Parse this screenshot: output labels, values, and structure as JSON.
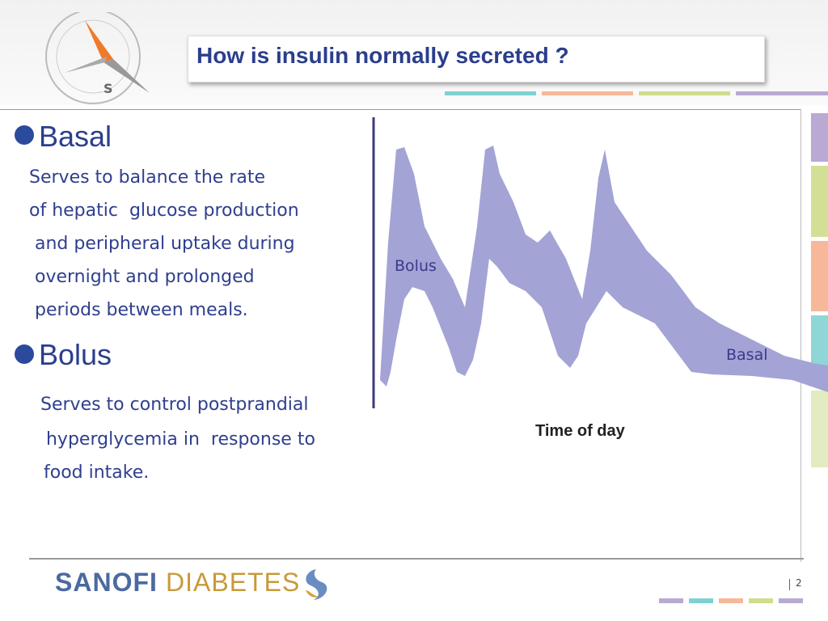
{
  "header": {
    "title": "How is insulin normally secreted ?"
  },
  "bullets": [
    {
      "heading": "Basal",
      "lines": [
        "Serves to balance the rate",
        "of hepatic  glucose production",
        " and peripheral uptake during",
        " overnight and prolonged",
        " periods between meals."
      ]
    },
    {
      "heading": "Bolus",
      "lines": [
        "Serves to control postprandial",
        " hyperglycemia in  response to",
        "food intake."
      ]
    }
  ],
  "figure": {
    "bolus_label": "Bolus",
    "basal_label": "Basal",
    "x_axis_label": "Time of day"
  },
  "footer": {
    "brand_left": "SANOFI",
    "brand_right": "DIABETES",
    "page_number": "2"
  }
}
